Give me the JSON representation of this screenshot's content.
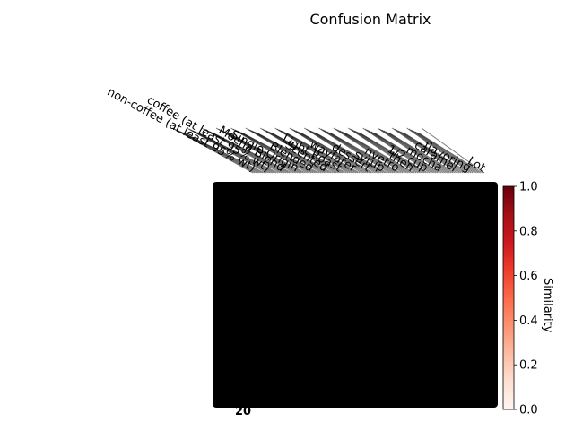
{
  "chart_data": {
    "type": "heatmap",
    "title": "Confusion Matrix",
    "colorbar": {
      "label": "Similarity",
      "range": [
        0.0,
        1.0
      ],
      "ticks": [
        "0.0",
        "0.2",
        "0.4",
        "0.6",
        "0.8",
        "1.0"
      ],
      "colormap": "Reds"
    },
    "x_tick_labels": [
      "non-coffee (at least 95% wt)",
      "coffee (at least 95% wt)",
      "Mocha Blend",
      "Single Origin",
      "Blended",
      "Scented",
      "Light Roast",
      "wayfarer",
      "dessert",
      "syrup",
      "nvetro",
      "then",
      "1/2 cup",
      "mocha",
      "caramel",
      "flavoring",
      "Lot"
    ],
    "y_tick_labels": [
      "20"
    ],
    "matrix_note": "cells too dense to read",
    "cell_color": "#000000"
  },
  "colors": {
    "background": "#ffffff",
    "cell": "#000000",
    "colorbar_top": "#67000d",
    "colorbar_bottom": "#fff5f0"
  }
}
